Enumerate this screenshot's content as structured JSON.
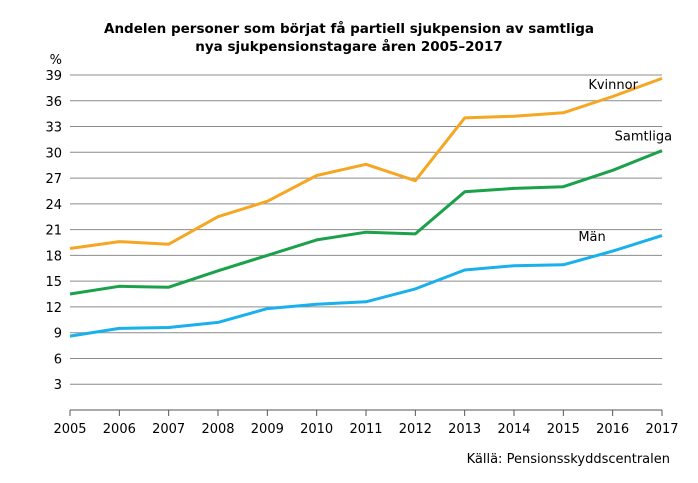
{
  "chart_data": {
    "type": "line",
    "title_line1": "Andelen personer som börjat få partiell sjukpension av samtliga",
    "title_line2": "nya sjukpensionstagare åren 2005–2017",
    "yunit": "%",
    "ylim": [
      0,
      39
    ],
    "yticks": [
      3,
      6,
      9,
      12,
      15,
      18,
      21,
      24,
      27,
      30,
      33,
      36,
      39
    ],
    "x": [
      "2005",
      "2006",
      "2007",
      "2008",
      "2009",
      "2010",
      "2011",
      "2012",
      "2013",
      "2014",
      "2015",
      "2016",
      "2017"
    ],
    "series": [
      {
        "name": "Kvinnor",
        "color": "#f5a623",
        "values": [
          18.8,
          19.6,
          19.3,
          22.5,
          24.3,
          27.3,
          28.6,
          26.7,
          34.0,
          34.2,
          34.6,
          36.5,
          38.6
        ]
      },
      {
        "name": "Samtliga",
        "color": "#1aa14a",
        "values": [
          13.5,
          14.4,
          14.3,
          16.2,
          18.0,
          19.8,
          20.7,
          20.5,
          25.4,
          25.8,
          26.0,
          27.9,
          30.2
        ]
      },
      {
        "name": "Män",
        "color": "#1ab0ec",
        "values": [
          8.6,
          9.5,
          9.6,
          10.2,
          11.8,
          12.3,
          12.6,
          14.1,
          16.3,
          16.8,
          16.9,
          18.5,
          20.3
        ]
      }
    ],
    "grid": true,
    "source": "Källä: Pensionsskyddscentralen"
  }
}
